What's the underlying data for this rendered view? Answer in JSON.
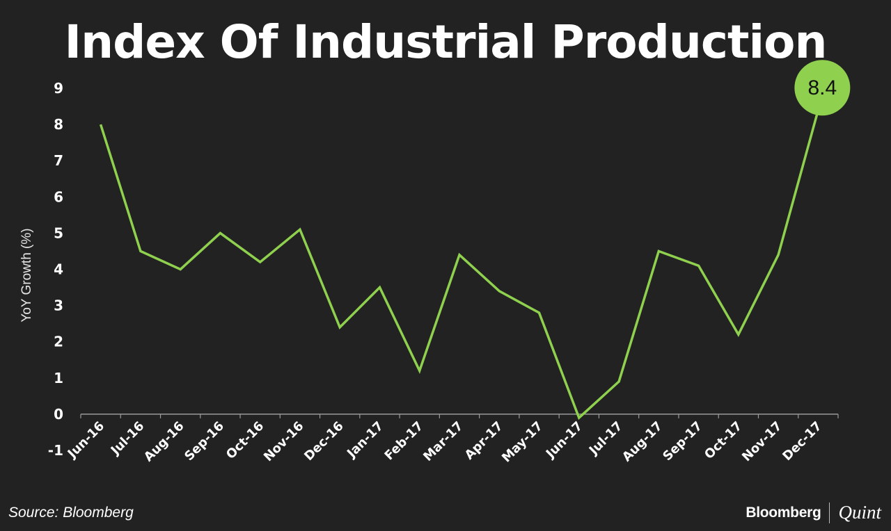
{
  "chart_data": {
    "type": "line",
    "title": "Index Of Industrial Production",
    "ylabel": "YoY Growth (%)",
    "xlabel": "",
    "categories": [
      "Jun-16",
      "Jul-16",
      "Aug-16",
      "Sep-16",
      "Oct-16",
      "Nov-16",
      "Dec-16",
      "Jan-17",
      "Feb-17",
      "Mar-17",
      "Apr-17",
      "May-17",
      "Jun-17",
      "Jul-17",
      "Aug-17",
      "Sep-17",
      "Oct-17",
      "Nov-17",
      "Dec-17"
    ],
    "series": [
      {
        "values": [
          8.0,
          4.5,
          4.0,
          5.0,
          4.2,
          5.1,
          2.4,
          3.5,
          1.2,
          4.4,
          3.4,
          2.8,
          -0.1,
          0.9,
          4.5,
          4.1,
          2.2,
          4.4,
          8.4
        ]
      }
    ],
    "ylim": [
      -1,
      9
    ],
    "yticks": [
      9,
      8,
      7,
      6,
      5,
      4,
      3,
      2,
      1,
      0,
      -1
    ],
    "grid": false,
    "callout": {
      "label": "8.4",
      "category": "Dec-17"
    },
    "colors": {
      "background": "#222222",
      "line": "#8fd14f",
      "callout_fill": "#8fd14f",
      "text": "#ffffff"
    }
  },
  "footer": {
    "source": "Source: Bloomberg",
    "logo_primary": "Bloomberg",
    "logo_secondary": "Quint"
  }
}
